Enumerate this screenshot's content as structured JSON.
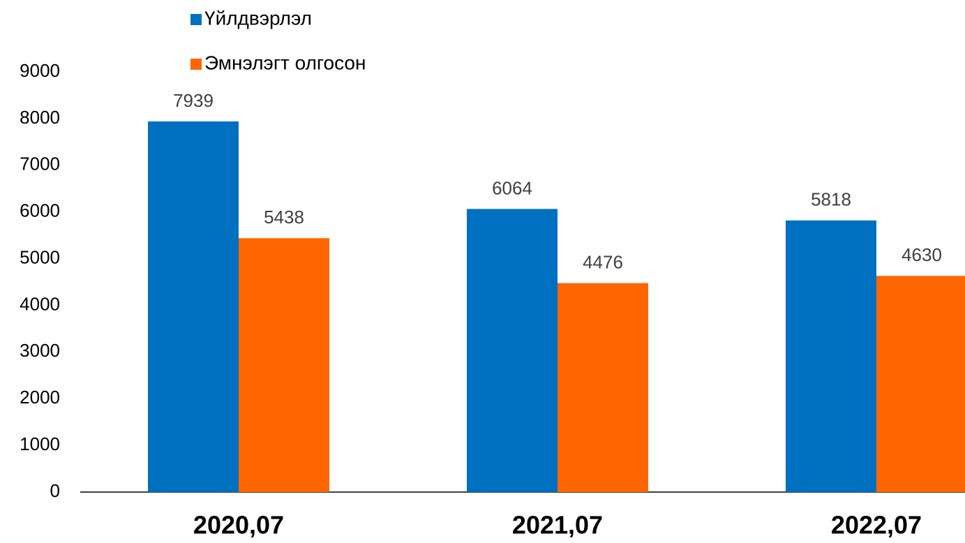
{
  "chart_data": {
    "type": "bar",
    "categories": [
      "2020,07",
      "2021,07",
      "2022,07"
    ],
    "series": [
      {
        "name": "Үйлдвэрлэл",
        "color": "#0070c0",
        "values": [
          7939,
          6064,
          5818
        ]
      },
      {
        "name": "Эмнэлэгт олгосон",
        "color": "#ff6600",
        "values": [
          5438,
          4476,
          4630
        ]
      }
    ],
    "ylim": [
      0,
      9000
    ],
    "yticks": [
      0,
      1000,
      2000,
      3000,
      4000,
      5000,
      6000,
      7000,
      8000,
      9000
    ],
    "grid": false,
    "legend": "top"
  }
}
